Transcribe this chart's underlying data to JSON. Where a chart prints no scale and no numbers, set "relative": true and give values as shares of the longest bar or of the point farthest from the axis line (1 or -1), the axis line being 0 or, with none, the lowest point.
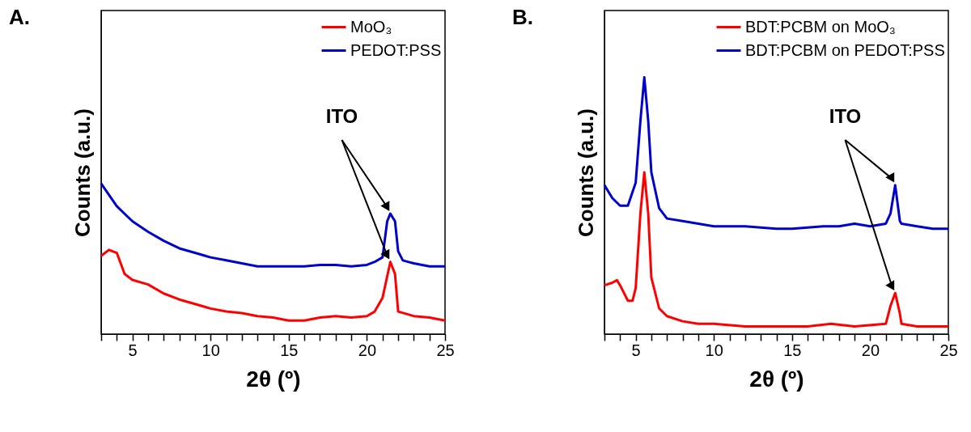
{
  "chart_data": [
    {
      "type": "line",
      "title": "A.",
      "xlabel": "2θ (º)",
      "ylabel": "Counts (a.u.)",
      "relative": true,
      "legend": "top right",
      "annotations": [
        "ITO"
      ],
      "xlim": [
        3,
        25
      ],
      "xticks": [
        {
          "value": 3,
          "label": null
        },
        {
          "value": 4,
          "label": null
        },
        5,
        {
          "value": 6,
          "label": null
        },
        {
          "value": 7,
          "label": null
        },
        {
          "value": 8,
          "label": null
        },
        {
          "value": 9,
          "label": null
        },
        10,
        {
          "value": 11,
          "label": null
        },
        {
          "value": 12,
          "label": null
        },
        {
          "value": 13,
          "label": null
        },
        {
          "value": 14,
          "label": null
        },
        15,
        {
          "value": 16,
          "label": null
        },
        {
          "value": 17,
          "label": null
        },
        {
          "value": 18,
          "label": null
        },
        {
          "value": 19,
          "label": null
        },
        20,
        {
          "value": 21,
          "label": null
        },
        {
          "value": 22,
          "label": null
        },
        {
          "value": 23,
          "label": null
        },
        {
          "value": 24,
          "label": null
        },
        25
      ],
      "series": [
        {
          "name": "MoO₃",
          "color": "#ff0000",
          "x": [
            3,
            3.5,
            4,
            4.5,
            5,
            6,
            7,
            8,
            9,
            10,
            11,
            12,
            13,
            14,
            15,
            16,
            17,
            18,
            19,
            20,
            20.5,
            21,
            21.5,
            21.8,
            22,
            23,
            24,
            25
          ],
          "values": [
            0.52,
            0.56,
            0.54,
            0.4,
            0.36,
            0.33,
            0.27,
            0.23,
            0.2,
            0.17,
            0.15,
            0.14,
            0.12,
            0.11,
            0.09,
            0.09,
            0.11,
            0.12,
            0.11,
            0.12,
            0.15,
            0.24,
            0.48,
            0.4,
            0.15,
            0.12,
            0.11,
            0.09
          ]
        },
        {
          "name": "PEDOT:PSS",
          "color": "#0000cc",
          "x": [
            3,
            4,
            5,
            6,
            7,
            8,
            9,
            10,
            11,
            12,
            13,
            14,
            15,
            16,
            17,
            18,
            19,
            20,
            20.5,
            21,
            21.3,
            21.5,
            21.8,
            22,
            22.3,
            23,
            24,
            25
          ],
          "values": [
            1,
            0.85,
            0.75,
            0.68,
            0.62,
            0.57,
            0.54,
            0.51,
            0.49,
            0.47,
            0.45,
            0.45,
            0.45,
            0.45,
            0.46,
            0.46,
            0.45,
            0.46,
            0.48,
            0.51,
            0.75,
            0.8,
            0.75,
            0.55,
            0.49,
            0.47,
            0.45,
            0.45
          ]
        }
      ]
    },
    {
      "type": "line",
      "title": "B.",
      "xlabel": "2θ (º)",
      "ylabel": "Counts (a.u.)",
      "relative": true,
      "legend": "top right",
      "annotations": [
        "ITO"
      ],
      "xlim": [
        3,
        25
      ],
      "xticks": [
        {
          "value": 3,
          "label": null
        },
        {
          "value": 4,
          "label": null
        },
        5,
        {
          "value": 6,
          "label": null
        },
        {
          "value": 7,
          "label": null
        },
        {
          "value": 8,
          "label": null
        },
        {
          "value": 9,
          "label": null
        },
        10,
        {
          "value": 11,
          "label": null
        },
        {
          "value": 12,
          "label": null
        },
        {
          "value": 13,
          "label": null
        },
        {
          "value": 14,
          "label": null
        },
        15,
        {
          "value": 16,
          "label": null
        },
        {
          "value": 17,
          "label": null
        },
        {
          "value": 18,
          "label": null
        },
        {
          "value": 19,
          "label": null
        },
        20,
        {
          "value": 21,
          "label": null
        },
        {
          "value": 22,
          "label": null
        },
        {
          "value": 23,
          "label": null
        },
        {
          "value": 24,
          "label": null
        },
        25
      ],
      "series": [
        {
          "name": "BDT:PCBM on MoO₃",
          "color": "#ff0000",
          "x": [
            3,
            3.5,
            3.8,
            4,
            4.5,
            4.8,
            5,
            5.3,
            5.55,
            5.8,
            6,
            6.5,
            7,
            8,
            9,
            10,
            12,
            14,
            16,
            17.5,
            19,
            21,
            21.3,
            21.6,
            21.9,
            22,
            23,
            25
          ],
          "values": [
            0.19,
            0.2,
            0.21,
            0.19,
            0.13,
            0.13,
            0.18,
            0.47,
            0.63,
            0.47,
            0.22,
            0.1,
            0.07,
            0.05,
            0.04,
            0.04,
            0.03,
            0.03,
            0.03,
            0.04,
            0.03,
            0.04,
            0.11,
            0.16,
            0.08,
            0.04,
            0.03,
            0.03
          ]
        },
        {
          "name": "BDT:PCBM on PEDOT:PSS",
          "color": "#0000cc",
          "x": [
            3,
            3.5,
            4,
            4.5,
            5,
            5.3,
            5.55,
            5.8,
            6,
            6.5,
            7,
            8,
            9,
            10,
            12,
            14,
            15,
            17,
            18,
            19,
            20,
            21,
            21.3,
            21.6,
            21.9,
            22,
            23,
            24,
            25
          ],
          "values": [
            0.58,
            0.53,
            0.5,
            0.5,
            0.59,
            0.83,
            1,
            0.83,
            0.63,
            0.49,
            0.45,
            0.44,
            0.43,
            0.42,
            0.42,
            0.41,
            0.41,
            0.42,
            0.42,
            0.43,
            0.42,
            0.43,
            0.47,
            0.58,
            0.44,
            0.43,
            0.42,
            0.41,
            0.41
          ]
        }
      ]
    }
  ]
}
